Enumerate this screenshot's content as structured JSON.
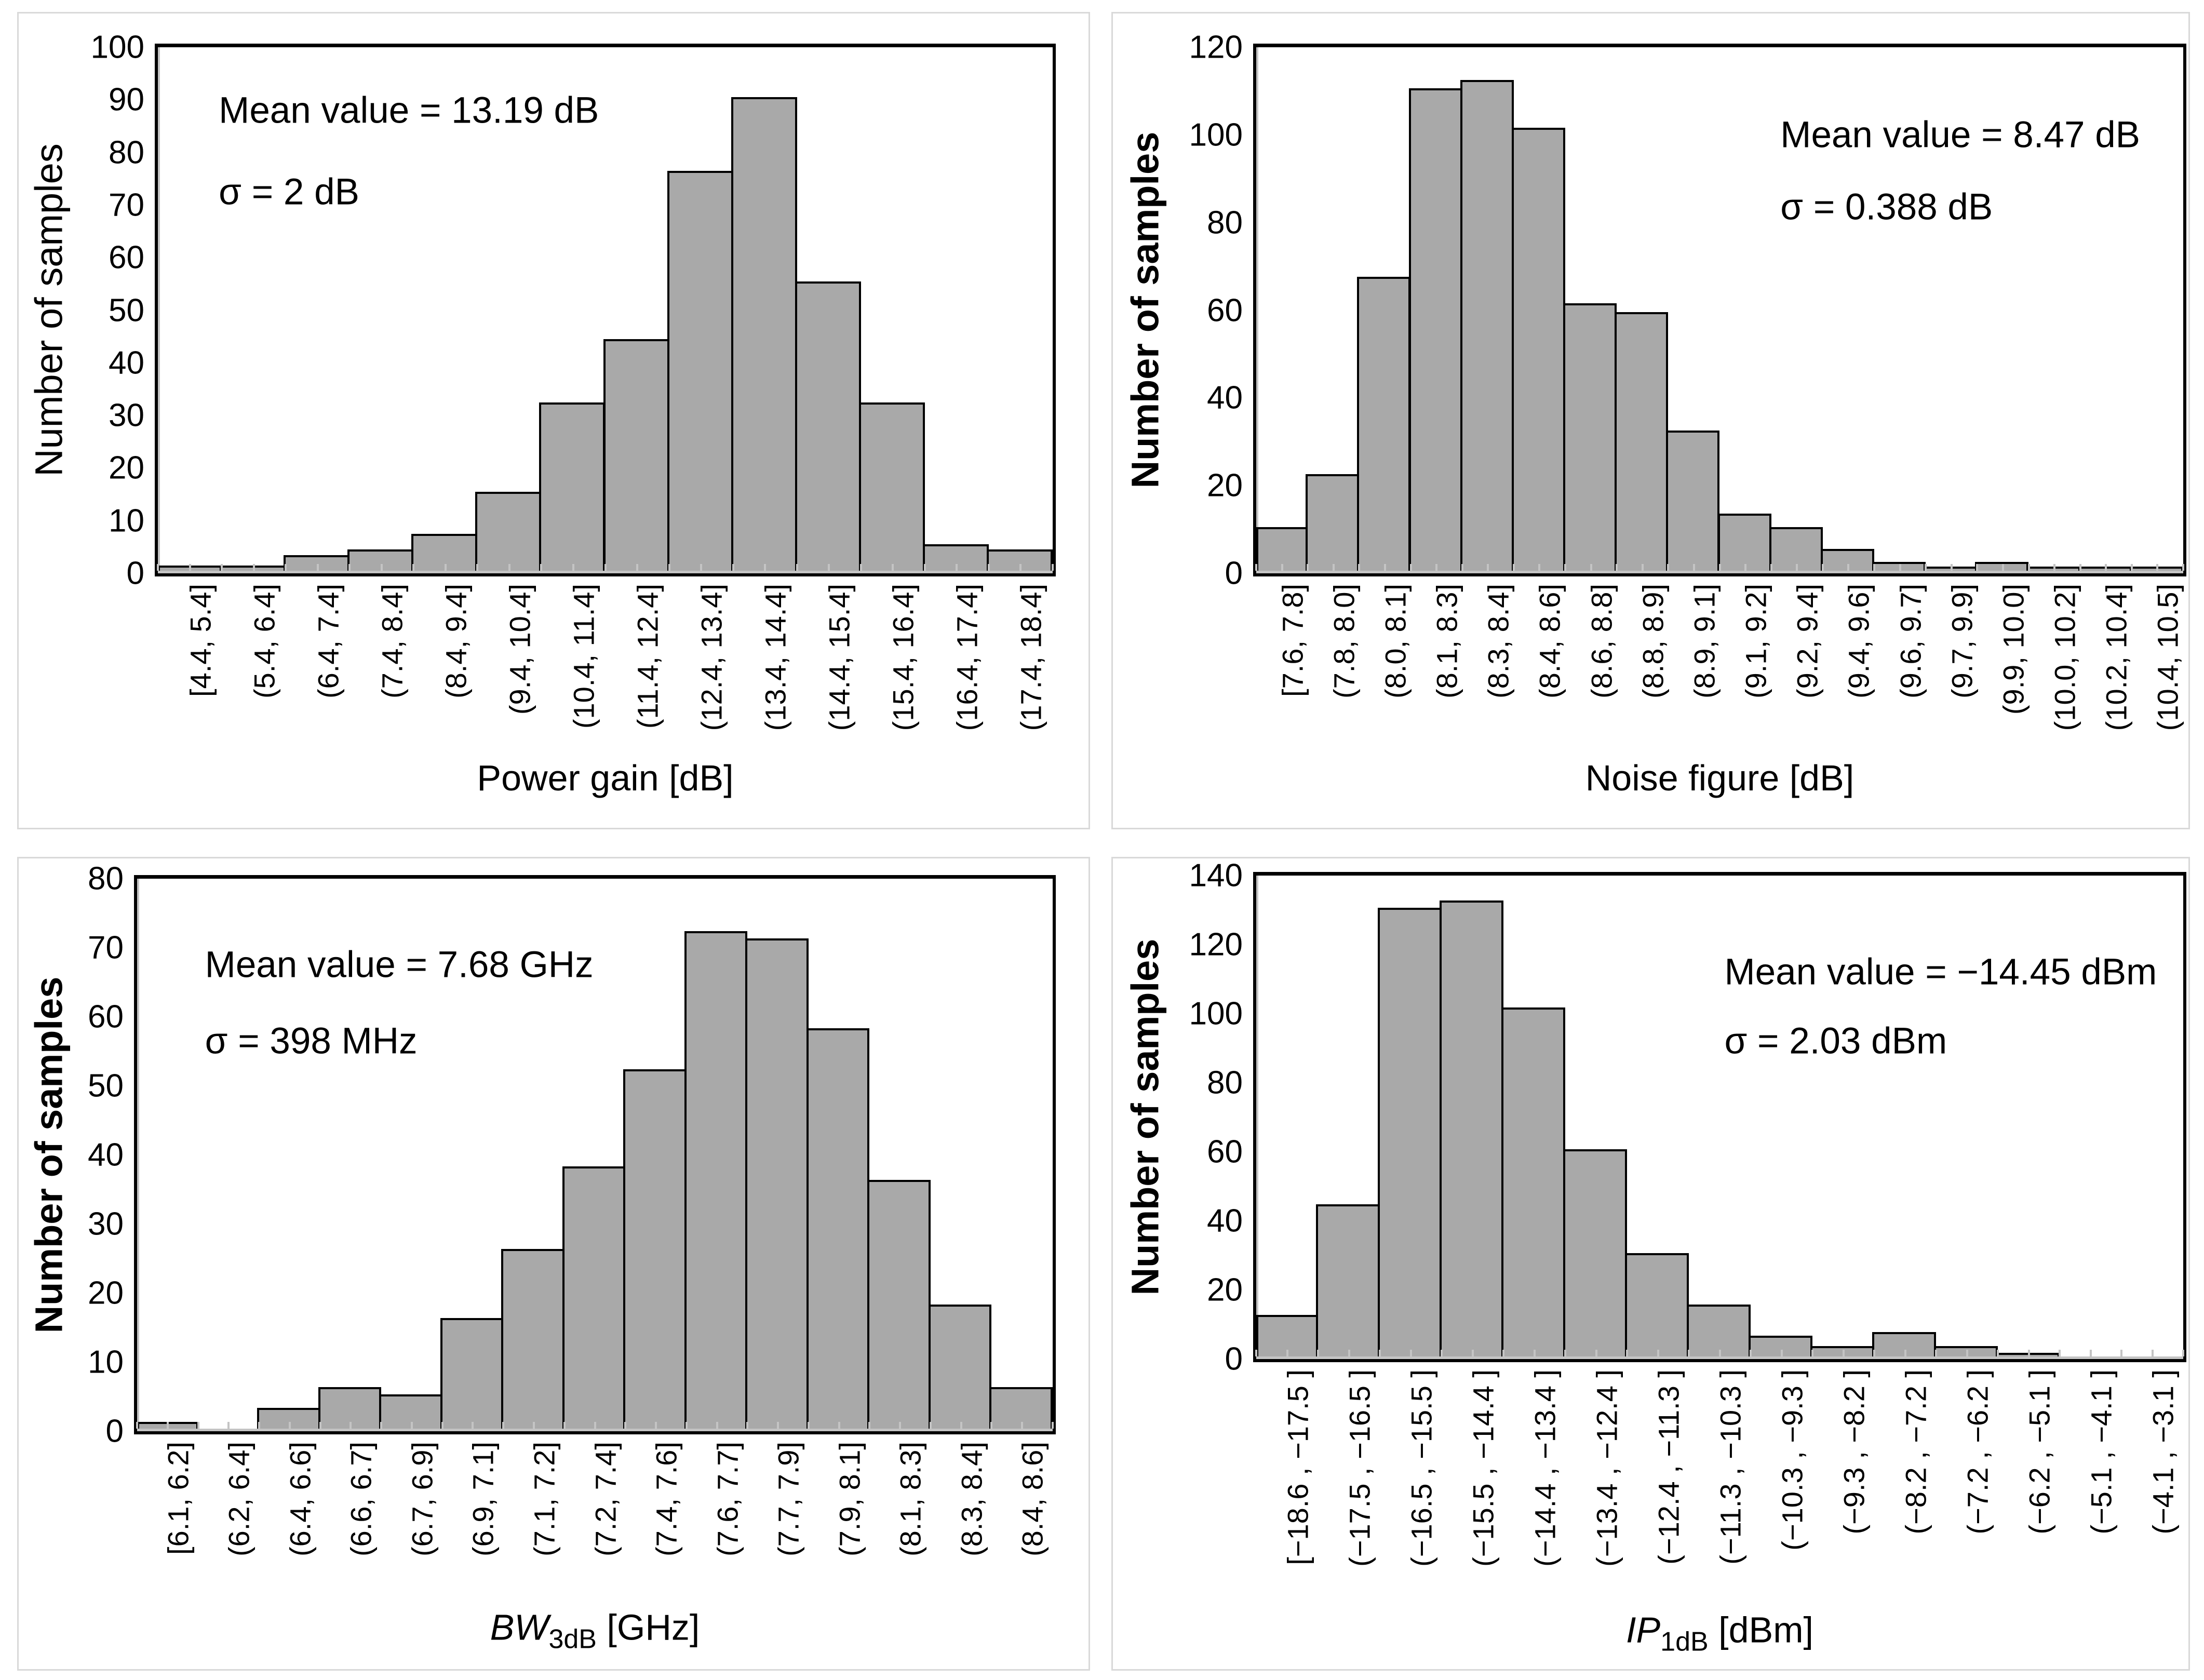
{
  "figure": {
    "description": "2x2 grid of histograms of amplifier performance samples",
    "background": "#ffffff",
    "panel_border_color": "#d9d9d9",
    "bar_fill": "#a9a9a9",
    "bar_border": "#000000",
    "axis_accent_gray": "#c4c4c4"
  },
  "chart_data": [
    {
      "id": "power-gain",
      "type": "bar",
      "title": "",
      "xlabel": "Power gain [dB]",
      "xlabel_parts": [
        {
          "text": "Power gain [dB]",
          "style": "normal"
        }
      ],
      "ylabel": "Number of samples",
      "ylabel_bold": false,
      "ylim": [
        0,
        100
      ],
      "ytick_step": 10,
      "grid": false,
      "legend": "none",
      "categories": [
        "[4.4, 5.4]",
        "(5.4, 6.4]",
        "(6.4, 7.4]",
        "(7.4, 8.4]",
        "(8.4, 9.4]",
        "(9.4, 10.4]",
        "(10.4, 11.4]",
        "(11.4, 12.4]",
        "(12.4, 13.4]",
        "(13.4, 14.4]",
        "(14.4, 15.4]",
        "(15.4, 16.4]",
        "(16.4, 17.4]",
        "(17.4, 18.4]"
      ],
      "values": [
        1,
        1,
        3,
        4,
        7,
        15,
        32,
        44,
        76,
        90,
        55,
        32,
        5,
        4
      ],
      "annotations": {
        "mean": "Mean value = 13.19 dB",
        "sigma": "σ = 2 dB"
      }
    },
    {
      "id": "noise-figure",
      "type": "bar",
      "title": "",
      "xlabel": "Noise figure [dB]",
      "xlabel_parts": [
        {
          "text": "Noise figure [dB]",
          "style": "normal"
        }
      ],
      "ylabel": "Number of samples",
      "ylabel_bold": true,
      "ylim": [
        0,
        120
      ],
      "ytick_step": 20,
      "grid": false,
      "legend": "none",
      "categories": [
        "[7.6, 7.8]",
        "(7.8, 8.0]",
        "(8.0, 8.1]",
        "(8.1, 8.3]",
        "(8.3, 8.4]",
        "(8.4, 8.6]",
        "(8.6, 8.8]",
        "(8.8, 8.9]",
        "(8.9, 9.1]",
        "(9.1, 9.2]",
        "(9.2, 9.4]",
        "(9.4, 9.6]",
        "(9.6, 9.7]",
        "(9.7, 9.9]",
        "(9.9, 10.0]",
        "(10.0, 10.2]",
        "(10.2, 10.4]",
        "(10.4, 10.5]"
      ],
      "values": [
        10,
        22,
        67,
        110,
        112,
        101,
        61,
        59,
        32,
        13,
        10,
        5,
        2,
        1,
        2,
        1,
        1,
        1
      ],
      "annotations": {
        "mean": "Mean value = 8.47 dB",
        "sigma": "σ = 0.388 dB"
      }
    },
    {
      "id": "bandwidth-3db",
      "type": "bar",
      "title": "",
      "xlabel": "BW3dB [GHz]",
      "xlabel_parts": [
        {
          "text": "BW",
          "style": "italic"
        },
        {
          "text": "3dB",
          "style": "sub"
        },
        {
          "text": " [GHz]",
          "style": "normal"
        }
      ],
      "ylabel": "Number of samples",
      "ylabel_bold": true,
      "ylim": [
        0,
        80
      ],
      "ytick_step": 10,
      "grid": false,
      "legend": "none",
      "categories": [
        "[6.1, 6.2]",
        "(6.2, 6.4]",
        "(6.4, 6.6]",
        "(6.6, 6.7]",
        "(6.7, 6.9]",
        "(6.9, 7.1]",
        "(7.1, 7.2]",
        "(7.2, 7.4]",
        "(7.4, 7.6]",
        "(7.6, 7.7]",
        "(7.7, 7.9]",
        "(7.9, 8.1]",
        "(8.1, 8.3]",
        "(8.3, 8.4]",
        "(8.4, 8.6]"
      ],
      "values": [
        1,
        0,
        3,
        6,
        5,
        16,
        26,
        38,
        52,
        72,
        71,
        58,
        36,
        18,
        6
      ],
      "annotations": {
        "mean": "Mean value = 7.68 GHz",
        "sigma": "σ = 398 MHz"
      }
    },
    {
      "id": "ip1db",
      "type": "bar",
      "title": "",
      "xlabel": "IP1dB [dBm]",
      "xlabel_parts": [
        {
          "text": "IP",
          "style": "italic"
        },
        {
          "text": "1dB",
          "style": "sub"
        },
        {
          "text": " [dBm]",
          "style": "normal"
        }
      ],
      "ylabel": "Number of samples",
      "ylabel_bold": true,
      "ylim": [
        0,
        140
      ],
      "ytick_step": 20,
      "grid": false,
      "legend": "none",
      "categories": [
        "[−18.6 , −17.5 ]",
        "(−17.5 , −16.5 ]",
        "(−16.5 , −15.5 ]",
        "(−15.5 , −14.4 ]",
        "(−14.4 , −13.4 ]",
        "(−13.4 , −12.4 ]",
        "(−12.4 , −11.3 ]",
        "(−11.3 , −10.3 ]",
        "(−10.3 , −9.3 ]",
        "(−9.3 , −8.2 ]",
        "(−8.2 , −7.2 ]",
        "(−7.2 , −6.2 ]",
        "(−6.2 , −5.1 ]",
        "(−5.1 , −4.1 ]",
        "(−4.1 , −3.1 ]"
      ],
      "values": [
        12,
        44,
        130,
        132,
        101,
        60,
        30,
        15,
        6,
        3,
        7,
        3,
        1,
        0,
        0
      ],
      "annotations": {
        "mean": "Mean value = −14.45 dBm",
        "sigma": "σ = 2.03 dBm"
      }
    }
  ]
}
